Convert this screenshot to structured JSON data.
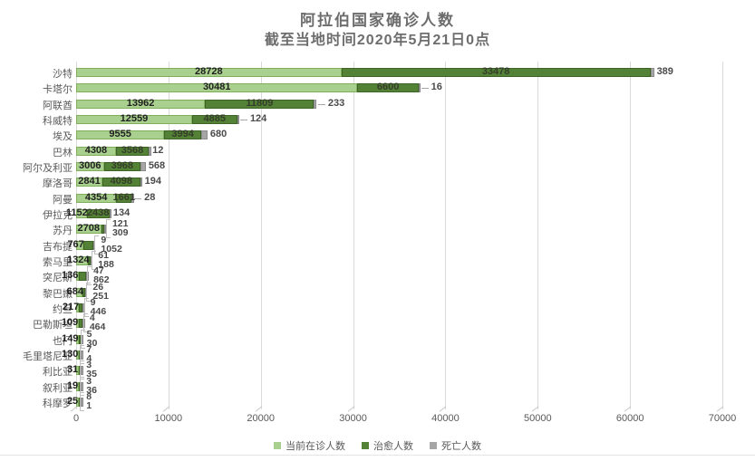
{
  "chart_data": {
    "type": "bar",
    "orientation": "horizontal",
    "stacked": true,
    "title": "阿拉伯国家确诊人数",
    "subtitle": "截至当地时间2020年5月21日0点",
    "xlabel": "",
    "ylabel": "",
    "xlim": [
      0,
      70000
    ],
    "x_ticks": [
      "0",
      "10000",
      "20000",
      "30000",
      "40000",
      "50000",
      "60000",
      "70000"
    ],
    "grid": true,
    "legend_position": "bottom",
    "series": [
      {
        "name": "当前在诊人数",
        "key": "active",
        "color": "#a9d08e"
      },
      {
        "name": "治愈人数",
        "key": "cured",
        "color": "#538135"
      },
      {
        "name": "死亡人数",
        "key": "deaths",
        "color": "#a6a6a6"
      }
    ],
    "rows": [
      {
        "name": "沙特",
        "active": 28728,
        "cured": 33478,
        "deaths": 389,
        "cured_label": "in",
        "death_style": "plain"
      },
      {
        "name": "卡塔尔",
        "active": 30481,
        "cured": 6600,
        "deaths": 16,
        "cured_label": "in",
        "death_style": "dash"
      },
      {
        "name": "阿联酋",
        "active": 13962,
        "cured": 11809,
        "deaths": 233,
        "cured_label": "in",
        "death_style": "dash"
      },
      {
        "name": "科威特",
        "active": 12559,
        "cured": 4885,
        "deaths": 124,
        "cured_label": "in",
        "death_style": "dash"
      },
      {
        "name": "埃及",
        "active": 9555,
        "cured": 3994,
        "deaths": 680,
        "cured_label": "in",
        "death_style": "plain"
      },
      {
        "name": "巴林",
        "active": 4308,
        "cured": 3568,
        "deaths": 12,
        "cured_label": "in",
        "death_style": "plain"
      },
      {
        "name": "阿尔及利亚",
        "active": 3006,
        "cured": 3968,
        "deaths": 568,
        "cured_label": "in",
        "death_style": "plain"
      },
      {
        "name": "摩洛哥",
        "active": 2841,
        "cured": 4098,
        "deaths": 194,
        "cured_label": "in",
        "death_style": "plain"
      },
      {
        "name": "阿曼",
        "active": 4354,
        "cured": 1661,
        "deaths": 28,
        "cured_label": "in",
        "death_style": "dash"
      },
      {
        "name": "伊拉克",
        "active": 1152,
        "cured": 2438,
        "deaths": 134,
        "cured_label": "in",
        "death_style": "plain"
      },
      {
        "name": "苏丹",
        "active": 2708,
        "cured": 309,
        "deaths": 121,
        "cured_label": "out",
        "callout_top": "deaths"
      },
      {
        "name": "吉布提",
        "active": 767,
        "cured": 1052,
        "deaths": 9,
        "cured_label": "out",
        "callout_top": "deaths"
      },
      {
        "name": "索马里",
        "active": 1324,
        "cured": 188,
        "deaths": 61,
        "cured_label": "out",
        "callout_top": "deaths"
      },
      {
        "name": "突尼斯",
        "active": 136,
        "cured": 862,
        "deaths": 47,
        "cured_label": "out",
        "callout_top": "deaths"
      },
      {
        "name": "黎巴嫩",
        "active": 684,
        "cured": 251,
        "deaths": 26,
        "cured_label": "out",
        "callout_top": "deaths"
      },
      {
        "name": "约旦",
        "active": 217,
        "cured": 446,
        "deaths": 9,
        "cured_label": "out",
        "callout_top": "deaths"
      },
      {
        "name": "巴勒斯坦",
        "active": 109,
        "cured": 464,
        "deaths": 4,
        "cured_label": "out",
        "callout_top": "deaths"
      },
      {
        "name": "也门",
        "active": 149,
        "cured": 5,
        "deaths": 30,
        "cured_label": "out",
        "callout_top": "cured"
      },
      {
        "name": "毛里塔尼亚",
        "active": 130,
        "cured": 7,
        "deaths": 4,
        "cured_label": "out",
        "callout_top": "cured"
      },
      {
        "name": "利比亚",
        "active": 31,
        "cured": 35,
        "deaths": 3,
        "cured_label": "out",
        "callout_top": "deaths"
      },
      {
        "name": "叙利亚",
        "active": 19,
        "cured": 36,
        "deaths": 3,
        "cured_label": "out",
        "callout_top": "deaths"
      },
      {
        "name": "科摩罗",
        "active": 25,
        "cured": 8,
        "deaths": 1,
        "cured_label": "out",
        "callout_top": "cured"
      }
    ]
  },
  "colors": {
    "active_fill": "#a9d08e",
    "active_border": "#7fae5b",
    "cured_fill": "#538135",
    "cured_border": "#3e6327",
    "deaths_fill": "#a6a6a6",
    "deaths_border": "#8c8c8c",
    "grid": "#d9d9d9",
    "axis_text": "#595959",
    "title_text": "#6d6d6d",
    "leader": "#bfbfbf"
  }
}
